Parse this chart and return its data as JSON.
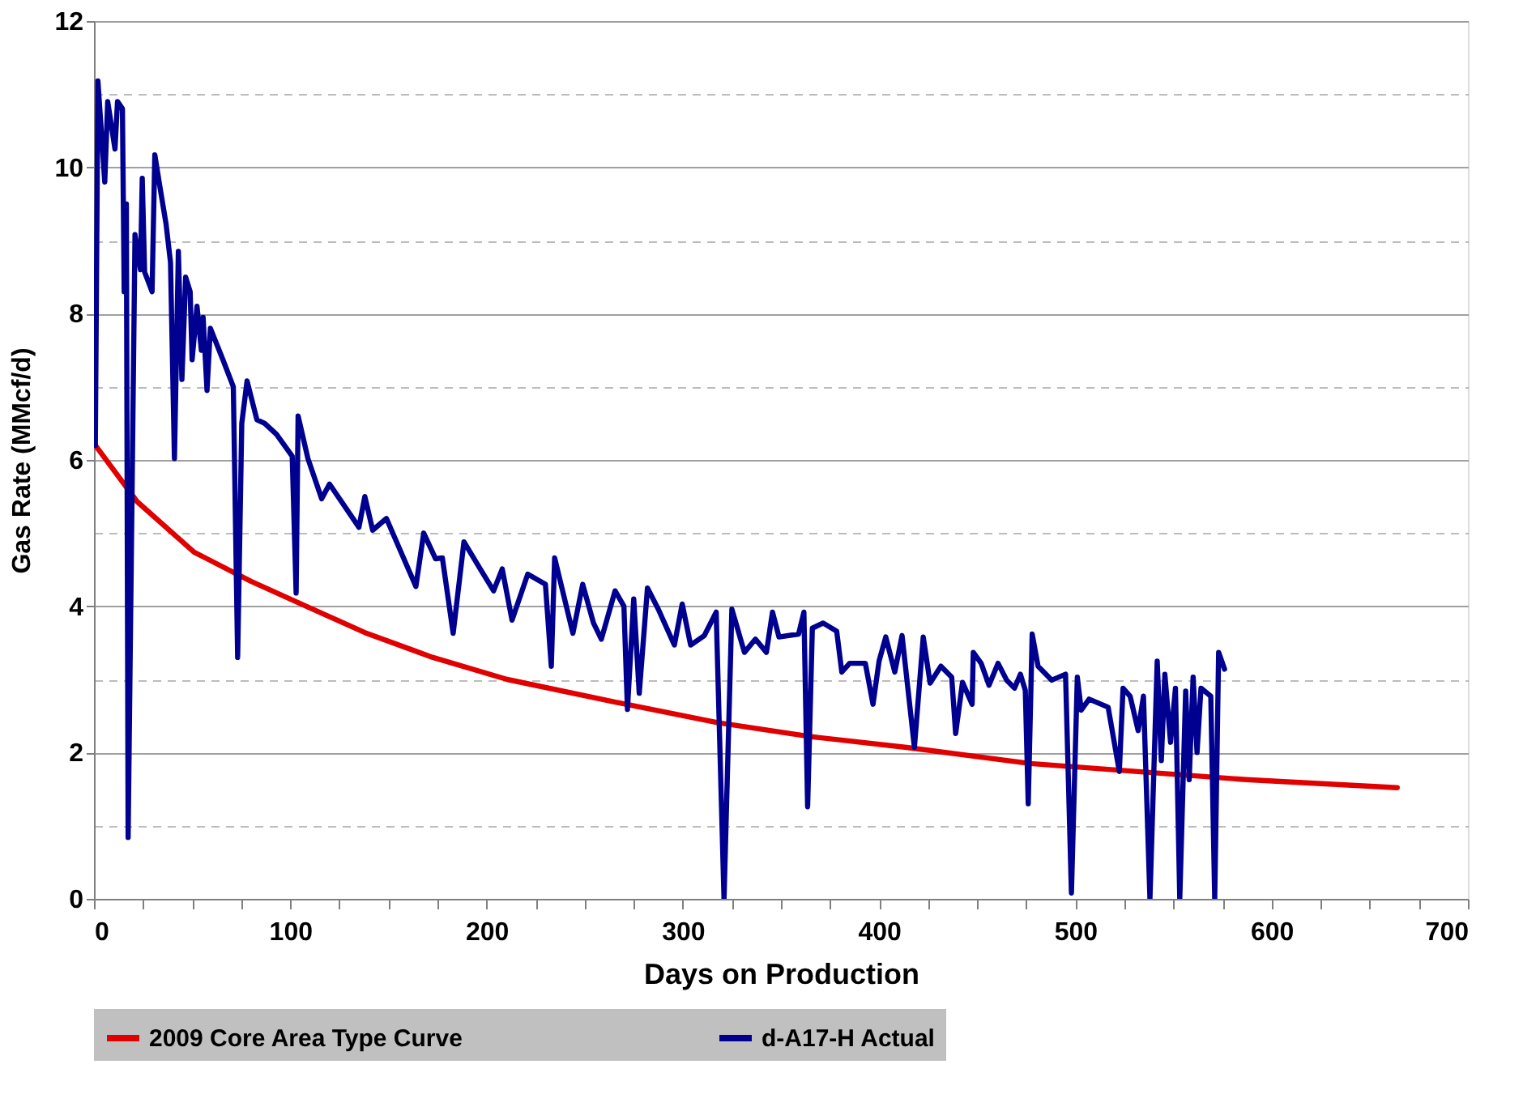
{
  "chart_data": {
    "type": "line",
    "xlabel": "Days on Production",
    "ylabel": "Gas Rate (MMcf/d)",
    "xlim": [
      0,
      700
    ],
    "ylim": [
      0,
      12
    ],
    "xticks": [
      0,
      {
        "value": 25,
        "label": null
      },
      {
        "value": 50,
        "label": null
      },
      {
        "value": 75,
        "label": null
      },
      100,
      {
        "value": 125,
        "label": null
      },
      {
        "value": 150,
        "label": null
      },
      {
        "value": 175,
        "label": null
      },
      200,
      {
        "value": 225,
        "label": null
      },
      {
        "value": 250,
        "label": null
      },
      {
        "value": 275,
        "label": null
      },
      300,
      {
        "value": 325,
        "label": null
      },
      {
        "value": 350,
        "label": null
      },
      {
        "value": 375,
        "label": null
      },
      400,
      {
        "value": 425,
        "label": null
      },
      {
        "value": 450,
        "label": null
      },
      {
        "value": 475,
        "label": null
      },
      500,
      {
        "value": 525,
        "label": null
      },
      {
        "value": 550,
        "label": null
      },
      {
        "value": 575,
        "label": null
      },
      600,
      {
        "value": 625,
        "label": null
      },
      {
        "value": 650,
        "label": null
      },
      {
        "value": 675,
        "label": null
      },
      700
    ],
    "yticks": [
      0,
      {
        "value": 1,
        "label": null
      },
      2,
      {
        "value": 3,
        "label": null
      },
      4,
      {
        "value": 5,
        "label": null
      },
      6,
      {
        "value": 7,
        "label": null
      },
      8,
      {
        "value": 9,
        "label": null
      },
      10,
      {
        "value": 11,
        "label": null
      },
      12
    ],
    "grid": "y",
    "legend": "bottom",
    "line_style": "solid",
    "marker": "none",
    "series": [
      {
        "name": "2009 Core Area Type Curve",
        "color": "#e00000",
        "x": [
          0.7,
          22,
          51,
          80,
          109,
          138,
          172.7,
          210.5,
          271,
          317.7,
          364.4,
          414,
          477,
          532,
          587,
          664
        ],
        "values": [
          6.2,
          5.43,
          4.74,
          4.34,
          3.99,
          3.64,
          3.3,
          3.0,
          2.66,
          2.41,
          2.22,
          2.07,
          1.85,
          1.74,
          1.63,
          1.52
        ]
      },
      {
        "name": "d-A17-H Actual",
        "color": "#000090",
        "x": [
          0.7,
          2,
          5.5,
          7,
          10.7,
          12,
          14.5,
          15.4,
          16.5,
          17.4,
          20.9,
          23.7,
          24.6,
          25.8,
          29.6,
          31,
          33.8,
          36.7,
          39,
          41,
          43,
          44.8,
          46.7,
          49,
          50,
          52.5,
          54.7,
          55.6,
          57.6,
          59.3,
          65.7,
          71,
          73.2,
          75.3,
          78,
          83,
          87,
          93,
          101,
          103,
          104,
          109,
          116,
          120,
          135,
          138,
          142,
          149,
          164,
          168,
          174,
          177.5,
          183,
          188.5,
          196.8,
          203.6,
          208,
          213,
          221,
          230,
          233,
          234.7,
          244,
          249,
          254.5,
          258.5,
          265.5,
          270,
          271.8,
          275,
          277.8,
          282,
          287.5,
          295.7,
          299.7,
          304,
          311,
          317,
          321,
          325,
          331.4,
          337,
          342.6,
          345.7,
          349,
          359,
          361.7,
          363.6,
          366,
          371.5,
          378.4,
          381,
          385,
          393,
          396.9,
          400,
          403.4,
          408,
          411.7,
          418,
          422.5,
          426,
          431.5,
          437,
          439,
          442.5,
          447.4,
          448,
          452,
          456,
          460.6,
          465,
          469,
          472,
          474.5,
          476,
          478,
          481,
          488,
          495,
          498,
          501,
          503,
          507,
          516.7,
          522.4,
          524.3,
          527.9,
          532,
          534.7,
          538,
          541.7,
          543.8,
          545.6,
          548.5,
          551,
          553.2,
          556.2,
          558,
          560,
          562,
          564,
          569,
          571,
          573,
          576
        ],
        "values": [
          6.2,
          11.18,
          9.8,
          10.9,
          10.25,
          10.9,
          10.8,
          8.3,
          9.5,
          0.84,
          9.08,
          8.6,
          9.85,
          8.57,
          8.3,
          10.17,
          9.7,
          9.23,
          8.7,
          6.02,
          8.85,
          7.1,
          8.5,
          8.3,
          7.37,
          8.1,
          7.5,
          7.95,
          6.95,
          7.8,
          7.37,
          7.0,
          3.3,
          6.5,
          7.08,
          6.55,
          6.5,
          6.35,
          6.05,
          4.18,
          6.6,
          6.02,
          5.47,
          5.67,
          5.08,
          5.5,
          5.04,
          5.2,
          4.27,
          5.0,
          4.65,
          4.66,
          3.63,
          4.88,
          4.51,
          4.21,
          4.51,
          3.81,
          4.44,
          4.3,
          3.18,
          4.66,
          3.63,
          4.3,
          3.77,
          3.55,
          4.21,
          4.0,
          2.59,
          4.1,
          2.81,
          4.25,
          3.96,
          3.47,
          4.03,
          3.47,
          3.6,
          3.92,
          0.0,
          3.96,
          3.37,
          3.55,
          3.37,
          3.92,
          3.58,
          3.62,
          3.92,
          1.26,
          3.7,
          3.77,
          3.66,
          3.1,
          3.22,
          3.22,
          2.66,
          3.25,
          3.58,
          3.1,
          3.6,
          2.07,
          3.58,
          2.95,
          3.18,
          3.03,
          2.26,
          2.96,
          2.66,
          3.37,
          3.22,
          2.92,
          3.22,
          2.99,
          2.88,
          3.07,
          2.85,
          1.3,
          3.62,
          3.18,
          2.99,
          3.07,
          0.08,
          3.03,
          2.58,
          2.73,
          2.62,
          1.74,
          2.88,
          2.77,
          2.3,
          2.77,
          0.0,
          3.25,
          1.89,
          3.07,
          2.14,
          2.88,
          0.0,
          2.84,
          1.63,
          3.03,
          2.0,
          2.88,
          2.77,
          0.0,
          3.37,
          3.14
        ]
      }
    ]
  }
}
